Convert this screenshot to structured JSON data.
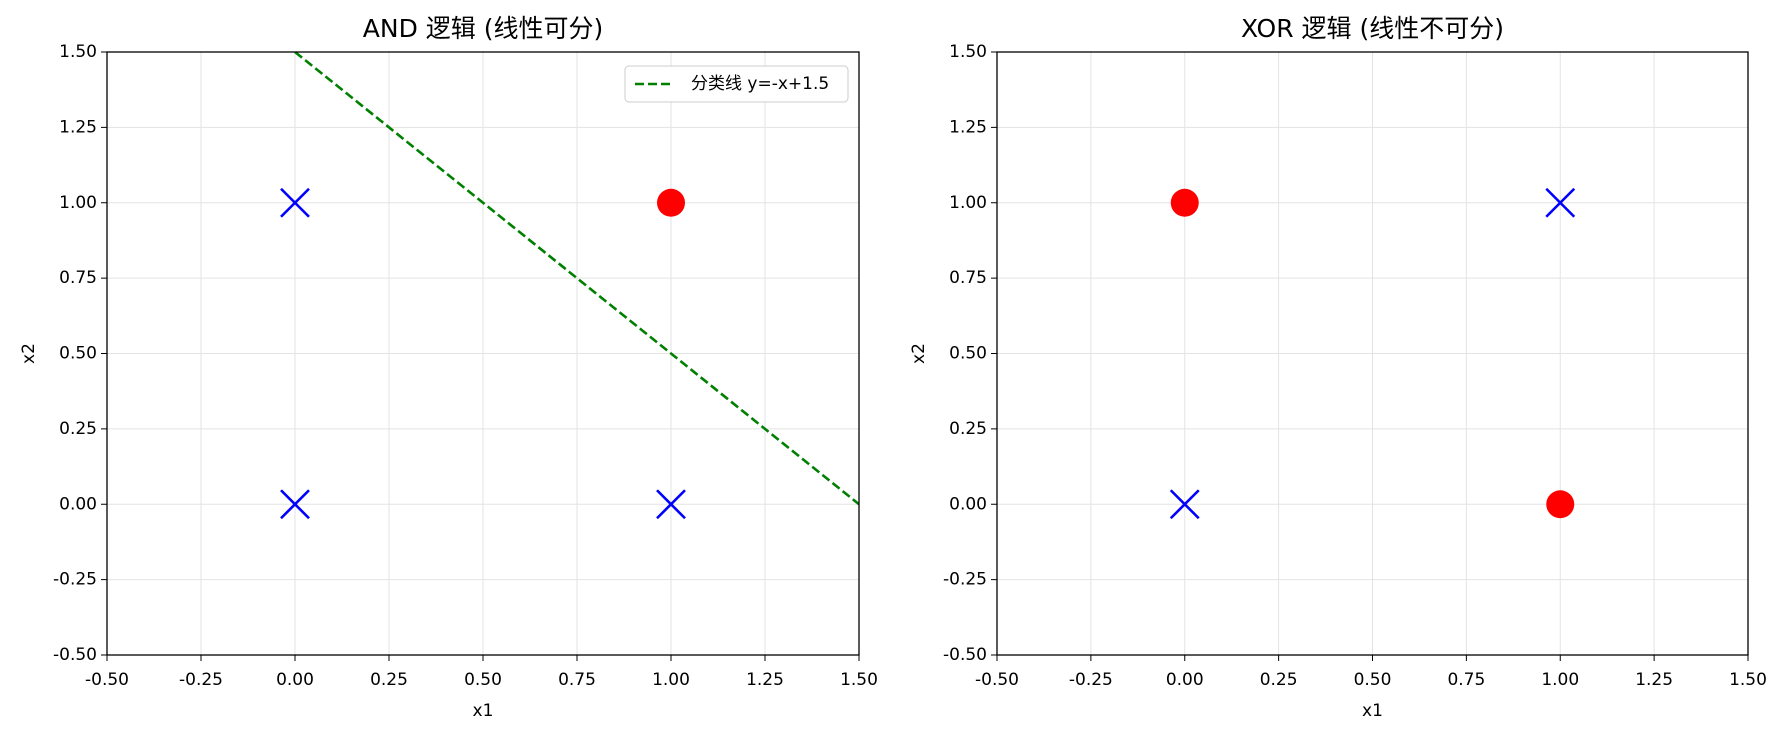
{
  "chart_data": [
    {
      "type": "scatter",
      "title": "AND 逻辑 (线性可分)",
      "xlabel": "x1",
      "ylabel": "x2",
      "xlim": [
        -0.5,
        1.5
      ],
      "ylim": [
        -0.5,
        1.5
      ],
      "xticks": [
        {
          "value": -0.5,
          "label": "-0.50"
        },
        -0.25,
        {
          "value": 0,
          "label": "0.00"
        },
        0.25,
        {
          "value": 0.5,
          "label": "0.50"
        },
        0.75,
        {
          "value": 1,
          "label": "1.00"
        },
        1.25,
        {
          "value": 1.5,
          "label": "1.50"
        }
      ],
      "yticks": [
        {
          "value": -0.5,
          "label": "-0.50"
        },
        -0.25,
        {
          "value": 0,
          "label": "0.00"
        },
        0.25,
        {
          "value": 0.5,
          "label": "0.50"
        },
        0.75,
        {
          "value": 1,
          "label": "1.00"
        },
        1.25,
        {
          "value": 1.5,
          "label": "1.50"
        }
      ],
      "grid": true,
      "legend": "upper right",
      "series": [
        {
          "marker": "o",
          "color": "#ff0000",
          "x": [
            1
          ],
          "values": [
            1
          ]
        },
        {
          "marker": "x",
          "color": "#0000ff",
          "x": [
            0,
            0,
            1
          ],
          "values": [
            0,
            1,
            0
          ]
        },
        {
          "type": "line",
          "name": "分类线 y=-x+1.5",
          "color": "#008000",
          "linestyle": "dashed",
          "x": [
            0,
            1.5
          ],
          "values": [
            1.5,
            0
          ]
        }
      ]
    },
    {
      "type": "scatter",
      "title": "XOR 逻辑 (线性不可分)",
      "xlabel": "x1",
      "ylabel": "x2",
      "xlim": [
        -0.5,
        1.5
      ],
      "ylim": [
        -0.5,
        1.5
      ],
      "xticks": [
        {
          "value": -0.5,
          "label": "-0.50"
        },
        -0.25,
        {
          "value": 0,
          "label": "0.00"
        },
        0.25,
        {
          "value": 0.5,
          "label": "0.50"
        },
        0.75,
        {
          "value": 1,
          "label": "1.00"
        },
        1.25,
        {
          "value": 1.5,
          "label": "1.50"
        }
      ],
      "yticks": [
        {
          "value": -0.5,
          "label": "-0.50"
        },
        -0.25,
        {
          "value": 0,
          "label": "0.00"
        },
        0.25,
        {
          "value": 0.5,
          "label": "0.50"
        },
        0.75,
        {
          "value": 1,
          "label": "1.00"
        },
        1.25,
        {
          "value": 1.5,
          "label": "1.50"
        }
      ],
      "grid": true,
      "series": [
        {
          "marker": "o",
          "color": "#ff0000",
          "x": [
            0,
            1
          ],
          "values": [
            1,
            0
          ]
        },
        {
          "marker": "x",
          "color": "#0000ff",
          "x": [
            0,
            1
          ],
          "values": [
            0,
            1
          ]
        }
      ]
    }
  ]
}
